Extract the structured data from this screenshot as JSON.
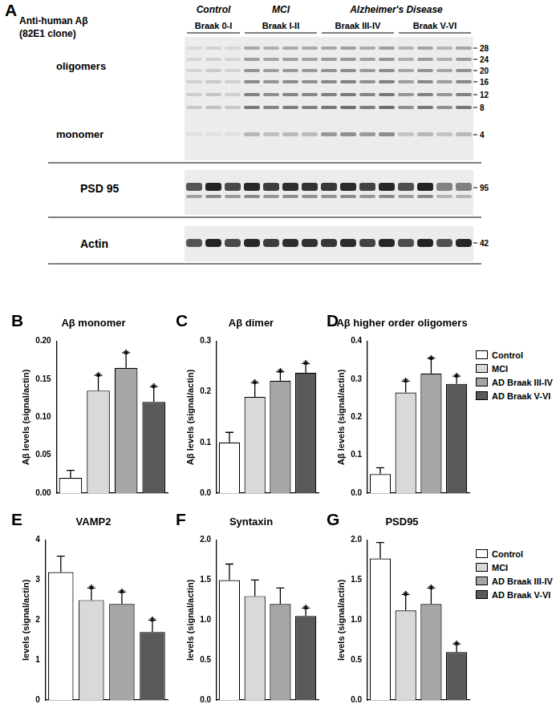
{
  "panel_a": {
    "label": "A",
    "antibody": [
      "Anti-human Aβ",
      "(82E1 clone)"
    ],
    "groups": [
      {
        "header": "Control",
        "braak": "Braak 0-I",
        "lanes": 3
      },
      {
        "header": "MCI",
        "braak": "Braak I-II",
        "lanes": 4
      },
      {
        "header": "Alzheimer's Disease",
        "braak": "Braak III-IV",
        "lanes": 4
      },
      {
        "header": "Alzheimer's Disease",
        "braak": "Braak V-VI",
        "lanes": 4
      }
    ],
    "blots": [
      {
        "labels": [
          "oligomers",
          "monomer"
        ],
        "markers": [
          28,
          24,
          20,
          16,
          12,
          8,
          4
        ]
      },
      {
        "labels": [
          "PSD 95"
        ],
        "markers": [
          95
        ]
      },
      {
        "labels": [
          "Actin"
        ],
        "markers": [
          42
        ]
      }
    ]
  },
  "chart_data": [
    {
      "type": "bar",
      "annotations": [
        "B"
      ],
      "title": "Aβ monomer",
      "ylabel": "Aβ levels (signal/actin)",
      "categories": [
        "Control",
        "MCI",
        "AD Braak III-IV",
        "AD Braak V-VI"
      ],
      "values": [
        0.02,
        0.135,
        0.165,
        0.12
      ],
      "errors": [
        0.01,
        0.02,
        0.02,
        0.02
      ],
      "significance": [
        null,
        "*",
        "*",
        "*"
      ],
      "colors": [
        "#ffffff",
        "#d9d9d9",
        "#a6a6a6",
        "#595959"
      ],
      "ylim": [
        0,
        0.2
      ],
      "yticks": [
        {
          "value": 0,
          "label": "0.00"
        },
        {
          "value": 0.05,
          "label": "0.05"
        },
        {
          "value": 0.1,
          "label": "0.10"
        },
        {
          "value": 0.15,
          "label": "0.15"
        },
        {
          "value": 0.2,
          "label": "0.20"
        }
      ],
      "grid": false,
      "tick_labels": "y"
    },
    {
      "type": "bar",
      "annotations": [
        "C"
      ],
      "title": "Aβ dimer",
      "ylabel": "Aβ levels (signal/actin)",
      "categories": [
        "Control",
        "MCI",
        "AD Braak III-IV",
        "AD Braak V-VI"
      ],
      "values": [
        0.1,
        0.19,
        0.222,
        0.238
      ],
      "errors": [
        0.02,
        0.028,
        0.018,
        0.018
      ],
      "significance": [
        null,
        "*",
        "*",
        "*"
      ],
      "colors": [
        "#ffffff",
        "#d9d9d9",
        "#a6a6a6",
        "#595959"
      ],
      "ylim": [
        0,
        0.3
      ],
      "yticks": [
        {
          "value": 0,
          "label": "0.0"
        },
        {
          "value": 0.1,
          "label": "0.1"
        },
        {
          "value": 0.2,
          "label": "0.2"
        },
        {
          "value": 0.3,
          "label": "0.3"
        }
      ],
      "grid": false,
      "tick_labels": "y"
    },
    {
      "type": "bar",
      "annotations": [
        "D"
      ],
      "title": "Aβ higher order oligomers",
      "ylabel": "Aβ levels (signal/actin)",
      "categories": [
        "Control",
        "MCI",
        "AD Braak III-IV",
        "AD Braak V-VI"
      ],
      "values": [
        0.05,
        0.265,
        0.315,
        0.288
      ],
      "errors": [
        0.017,
        0.03,
        0.04,
        0.02
      ],
      "significance": [
        null,
        "*",
        "*",
        "*"
      ],
      "colors": [
        "#ffffff",
        "#d9d9d9",
        "#a6a6a6",
        "#595959"
      ],
      "ylim": [
        0,
        0.4
      ],
      "yticks": [
        {
          "value": 0,
          "label": "0.0"
        },
        {
          "value": 0.1,
          "label": "0.1"
        },
        {
          "value": 0.2,
          "label": "0.2"
        },
        {
          "value": 0.3,
          "label": "0.3"
        },
        {
          "value": 0.4,
          "label": "0.4"
        }
      ],
      "grid": false,
      "tick_labels": "y",
      "legend": "right"
    },
    {
      "type": "bar",
      "annotations": [
        "E"
      ],
      "title": "VAMP2",
      "ylabel": "levels (signal/actin)",
      "categories": [
        "Control",
        "MCI",
        "AD Braak III-IV",
        "AD Braak V-VI"
      ],
      "values": [
        3.2,
        2.5,
        2.4,
        1.7
      ],
      "errors": [
        0.4,
        0.3,
        0.3,
        0.3
      ],
      "significance": [
        null,
        "*",
        "*",
        "*"
      ],
      "colors": [
        "#ffffff",
        "#d9d9d9",
        "#a6a6a6",
        "#595959"
      ],
      "ylim": [
        0,
        4
      ],
      "yticks": [
        0,
        1,
        2,
        3,
        4
      ],
      "grid": false,
      "tick_labels": "y"
    },
    {
      "type": "bar",
      "annotations": [
        "F"
      ],
      "title": "Syntaxin",
      "ylabel": "levels (signal/actin)",
      "categories": [
        "Control",
        "MCI",
        "AD Braak III-IV",
        "AD Braak V-VI"
      ],
      "values": [
        1.5,
        1.3,
        1.2,
        1.05
      ],
      "errors": [
        0.2,
        0.2,
        0.2,
        0.1
      ],
      "significance": [
        null,
        null,
        null,
        "*"
      ],
      "colors": [
        "#ffffff",
        "#d9d9d9",
        "#a6a6a6",
        "#595959"
      ],
      "ylim": [
        0,
        2
      ],
      "yticks": [
        {
          "value": 0,
          "label": "0.0"
        },
        {
          "value": 0.5,
          "label": "0.5"
        },
        {
          "value": 1,
          "label": "1.0"
        },
        {
          "value": 1.5,
          "label": "1.5"
        },
        {
          "value": 2,
          "label": "2.0"
        }
      ],
      "grid": false,
      "tick_labels": "y"
    },
    {
      "type": "bar",
      "annotations": [
        "G"
      ],
      "title": "PSD95",
      "ylabel": "levels (signal/actin)",
      "categories": [
        "Control",
        "MCI",
        "AD Braak III-IV",
        "AD Braak V-VI"
      ],
      "values": [
        1.77,
        1.12,
        1.2,
        0.6
      ],
      "errors": [
        0.2,
        0.2,
        0.2,
        0.1
      ],
      "significance": [
        null,
        "*",
        "*",
        "*"
      ],
      "colors": [
        "#ffffff",
        "#d9d9d9",
        "#a6a6a6",
        "#595959"
      ],
      "ylim": [
        0,
        2
      ],
      "yticks": [
        {
          "value": 0,
          "label": "0.0"
        },
        {
          "value": 0.5,
          "label": "0.5"
        },
        {
          "value": 1,
          "label": "1.0"
        },
        {
          "value": 1.5,
          "label": "1.5"
        },
        {
          "value": 2,
          "label": "2.0"
        }
      ],
      "grid": false,
      "tick_labels": "y",
      "legend": "right"
    }
  ]
}
